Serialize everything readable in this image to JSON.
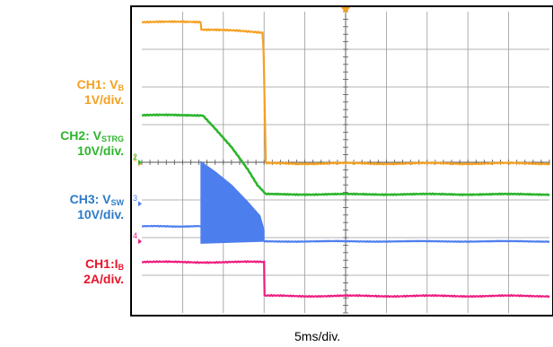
{
  "chart_data": {
    "type": "line",
    "title": "",
    "xlabel": "5ms/div.",
    "ylabel": "",
    "grid": true,
    "legend_placement": "left",
    "time_per_div_ms": 5,
    "h_divisions": 10,
    "v_divisions": 8,
    "series": [
      {
        "name": "CH1: VB",
        "label_main": "CH1: V",
        "label_sub": "B",
        "scale": "1V/div.",
        "color": "#F5A020",
        "marker": "1",
        "x_ms": [
          0,
          7.2,
          7.3,
          14.8,
          14.95,
          15.2,
          50
        ],
        "y_div": [
          3.72,
          3.72,
          3.53,
          3.45,
          2.9,
          -0.03,
          -0.03
        ]
      },
      {
        "name": "CH2: VSTRG",
        "label_main": "CH2: V",
        "label_sub": "STRG",
        "scale": "10V/div.",
        "color": "#2DB52D",
        "marker": "2",
        "x_ms": [
          0,
          7.5,
          9,
          11,
          13,
          14.2,
          15.2,
          50
        ],
        "y_div": [
          1.25,
          1.25,
          0.9,
          0.4,
          -0.2,
          -0.62,
          -0.85,
          -0.85
        ]
      },
      {
        "name": "CH3: VSW",
        "label_main": "CH3: V",
        "label_sub": "SW",
        "scale": "10V/div.",
        "color": "#4D7EEE",
        "marker": "3",
        "baseline_low_div": -1.7,
        "burst_start_ms": 7.25,
        "burst_end_ms": 15.0,
        "envelope_x_ms": [
          7.25,
          9,
          11,
          13,
          14.5,
          15.0
        ],
        "envelope_y_div": [
          0.02,
          -0.25,
          -0.6,
          -1.05,
          -1.42,
          -1.8
        ],
        "after_level_div": -2.1
      },
      {
        "name": "CH1:IB",
        "label_main": "CH1:I",
        "label_sub": "B",
        "scale": "2A/div.",
        "color": "#EE1B7F",
        "marker": "4",
        "x_ms": [
          0,
          15.0,
          15.05,
          50
        ],
        "y_div": [
          -2.65,
          -2.65,
          -3.55,
          -3.55
        ]
      }
    ]
  }
}
